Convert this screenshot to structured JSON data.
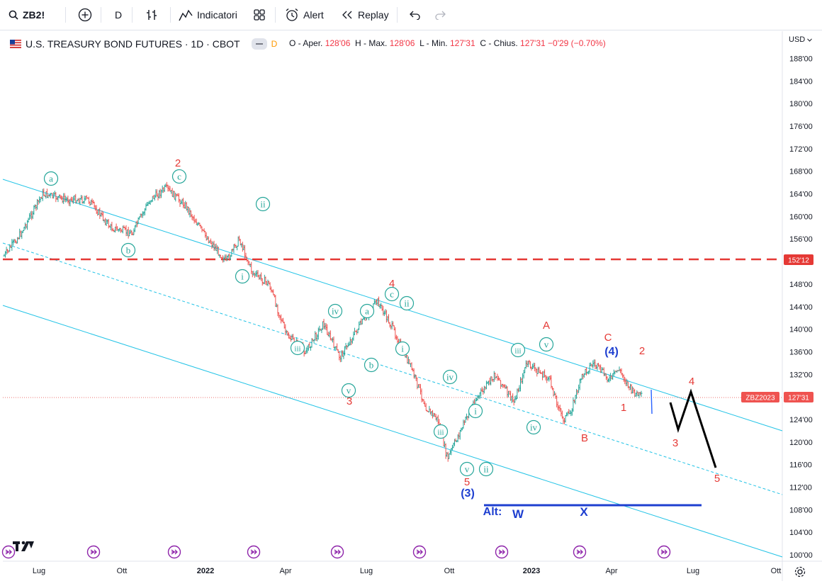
{
  "toolbar": {
    "symbol": "ZB2!",
    "interval": "D",
    "indicators_label": "Indicatori",
    "alert_label": "Alert",
    "replay_label": "Replay"
  },
  "legend": {
    "title": "U.S. TREASURY BOND FUTURES · 1D · CBOT",
    "badge": "D",
    "open_label": "O - Aper.",
    "open": "128'06",
    "high_label": "H - Max.",
    "high": "128'06",
    "low_label": "L - Min.",
    "low": "127'31",
    "close_label": "C - Chius.",
    "close": "127'31",
    "change": "−0'29 (−0.70%)"
  },
  "price_axis": {
    "currency": "USD",
    "labels": [
      "188'00",
      "184'00",
      "180'00",
      "176'00",
      "172'00",
      "168'00",
      "164'00",
      "160'00",
      "156'00",
      "152'00",
      "148'00",
      "144'00",
      "140'00",
      "136'00",
      "132'00",
      "128'00",
      "124'00",
      "120'00",
      "116'00",
      "112'00",
      "108'00",
      "104'00",
      "100'00"
    ],
    "level_badge": "152'12",
    "current_symbol": "ZBZ2023",
    "current_price": "127'31"
  },
  "time_axis": {
    "labels": [
      "Lug",
      "Ott",
      "2022",
      "Apr",
      "Lug",
      "Ott",
      "2023",
      "Apr",
      "Lug",
      "Ott"
    ]
  },
  "colors": {
    "channel": "#22c3e6",
    "wave_green": "#26a69a",
    "wave_red": "#e53935",
    "wave_blue": "#1e3fd0",
    "level_red": "#e53935",
    "up_bar": "#26a69a",
    "down_bar": "#ef5350"
  },
  "chart_data": {
    "type": "ohlc",
    "title": "U.S. TREASURY BOND FUTURES · 1D · CBOT",
    "ylim": [
      100,
      190
    ],
    "x_range": [
      "2021-06",
      "2023-10"
    ],
    "price_path": [
      {
        "x": "2021-06-01",
        "y": 153
      },
      {
        "x": "2021-06-20",
        "y": 157
      },
      {
        "x": "2021-07-15",
        "y": 164
      },
      {
        "x": "2021-08-10",
        "y": 163
      },
      {
        "x": "2021-09-05",
        "y": 163
      },
      {
        "x": "2021-10-01",
        "y": 158
      },
      {
        "x": "2021-10-25",
        "y": 157
      },
      {
        "x": "2021-11-15",
        "y": 163
      },
      {
        "x": "2021-12-03",
        "y": 165
      },
      {
        "x": "2021-12-25",
        "y": 162
      },
      {
        "x": "2022-01-15",
        "y": 157
      },
      {
        "x": "2022-02-10",
        "y": 152
      },
      {
        "x": "2022-02-25",
        "y": 156
      },
      {
        "x": "2022-03-12",
        "y": 150
      },
      {
        "x": "2022-03-31",
        "y": 148
      },
      {
        "x": "2022-04-20",
        "y": 139
      },
      {
        "x": "2022-05-12",
        "y": 136
      },
      {
        "x": "2022-06-01",
        "y": 141
      },
      {
        "x": "2022-06-20",
        "y": 135
      },
      {
        "x": "2022-07-10",
        "y": 140
      },
      {
        "x": "2022-08-02",
        "y": 145
      },
      {
        "x": "2022-08-20",
        "y": 140
      },
      {
        "x": "2022-09-10",
        "y": 133
      },
      {
        "x": "2022-09-27",
        "y": 126
      },
      {
        "x": "2022-10-10",
        "y": 124
      },
      {
        "x": "2022-10-21",
        "y": 117
      },
      {
        "x": "2022-11-05",
        "y": 122
      },
      {
        "x": "2022-11-20",
        "y": 127
      },
      {
        "x": "2022-12-15",
        "y": 132
      },
      {
        "x": "2023-01-05",
        "y": 127
      },
      {
        "x": "2023-01-20",
        "y": 134
      },
      {
        "x": "2023-02-15",
        "y": 131
      },
      {
        "x": "2023-03-02",
        "y": 124
      },
      {
        "x": "2023-03-10",
        "y": 125
      },
      {
        "x": "2023-03-25",
        "y": 132
      },
      {
        "x": "2023-04-06",
        "y": 134
      },
      {
        "x": "2023-04-25",
        "y": 131
      },
      {
        "x": "2023-05-05",
        "y": 133
      },
      {
        "x": "2023-05-20",
        "y": 129
      },
      {
        "x": "2023-06-01",
        "y": 127.97
      }
    ],
    "horizontal_levels": [
      {
        "price": 152.375,
        "label": "152'12",
        "style": "dashed"
      },
      {
        "price": 109,
        "from": "2022-11-15",
        "to": "2023-07-15",
        "style": "solid-blue"
      }
    ],
    "projection": [
      {
        "x": "2023-06-01",
        "y": 127.5
      },
      {
        "x": "2023-06-13",
        "y": 122
      },
      {
        "x": "2023-06-25",
        "y": 128.5
      },
      {
        "x": "2023-07-20",
        "y": 115
      }
    ],
    "annotations": [
      {
        "text": "a",
        "x": "2021-07-10",
        "y": 167
      },
      {
        "text": "b",
        "x": "2021-10-20",
        "y": 155
      },
      {
        "text": "c",
        "x": "2021-12-02",
        "y": 168
      },
      {
        "text": "2",
        "x": "2021-12-02",
        "y": 170
      },
      {
        "text": "ii",
        "x": "2022-03-15",
        "y": 163
      },
      {
        "text": "i",
        "x": "2022-02-20",
        "y": 149
      },
      {
        "text": "iii",
        "x": "2022-04-25",
        "y": 137
      },
      {
        "text": "iv",
        "x": "2022-05-30",
        "y": 143
      },
      {
        "text": "v",
        "x": "2022-06-25",
        "y": 129
      },
      {
        "text": "3",
        "x": "2022-06-27",
        "y": 127
      },
      {
        "text": "a",
        "x": "2022-07-05",
        "y": 143
      },
      {
        "text": "b",
        "x": "2022-07-20",
        "y": 133
      },
      {
        "text": "c",
        "x": "2022-08-05",
        "y": 145
      },
      {
        "text": "4",
        "x": "2022-08-05",
        "y": 148
      },
      {
        "text": "ii",
        "x": "2022-08-25",
        "y": 144
      },
      {
        "text": "i",
        "x": "2022-08-20",
        "y": 137
      },
      {
        "text": "iv",
        "x": "2022-09-30",
        "y": 131
      },
      {
        "text": "iii",
        "x": "2022-09-25",
        "y": 121
      },
      {
        "text": "i",
        "x": "2022-10-25",
        "y": 124
      },
      {
        "text": "v",
        "x": "2022-10-15",
        "y": 115
      },
      {
        "text": "ii",
        "x": "2022-11-01",
        "y": 115
      },
      {
        "text": "5",
        "x": "2022-10-15",
        "y": 113
      },
      {
        "text": "(3)",
        "x": "2022-10-15",
        "y": 111
      },
      {
        "text": "iii",
        "x": "2022-12-10",
        "y": 136
      },
      {
        "text": "iv",
        "x": "2023-01-05",
        "y": 122
      },
      {
        "text": "v",
        "x": "2023-01-25",
        "y": 137
      },
      {
        "text": "A",
        "x": "2023-01-25",
        "y": 141
      },
      {
        "text": "B",
        "x": "2023-03-12",
        "y": 120
      },
      {
        "text": "C",
        "x": "2023-04-01",
        "y": 138
      },
      {
        "text": "(4)",
        "x": "2023-04-01",
        "y": 136
      },
      {
        "text": "1",
        "x": "2023-04-20",
        "y": 127
      },
      {
        "text": "2",
        "x": "2023-05-05",
        "y": 136
      },
      {
        "text": "3",
        "x": "2023-06-13",
        "y": 120
      },
      {
        "text": "4",
        "x": "2023-06-25",
        "y": 131
      },
      {
        "text": "5",
        "x": "2023-07-15",
        "y": 113
      },
      {
        "text": "Alt:",
        "x": "2022-11-25",
        "y": 108
      },
      {
        "text": "W",
        "x": "2022-12-20",
        "y": 108
      },
      {
        "text": "X",
        "x": "2023-02-20",
        "y": 108
      }
    ]
  }
}
